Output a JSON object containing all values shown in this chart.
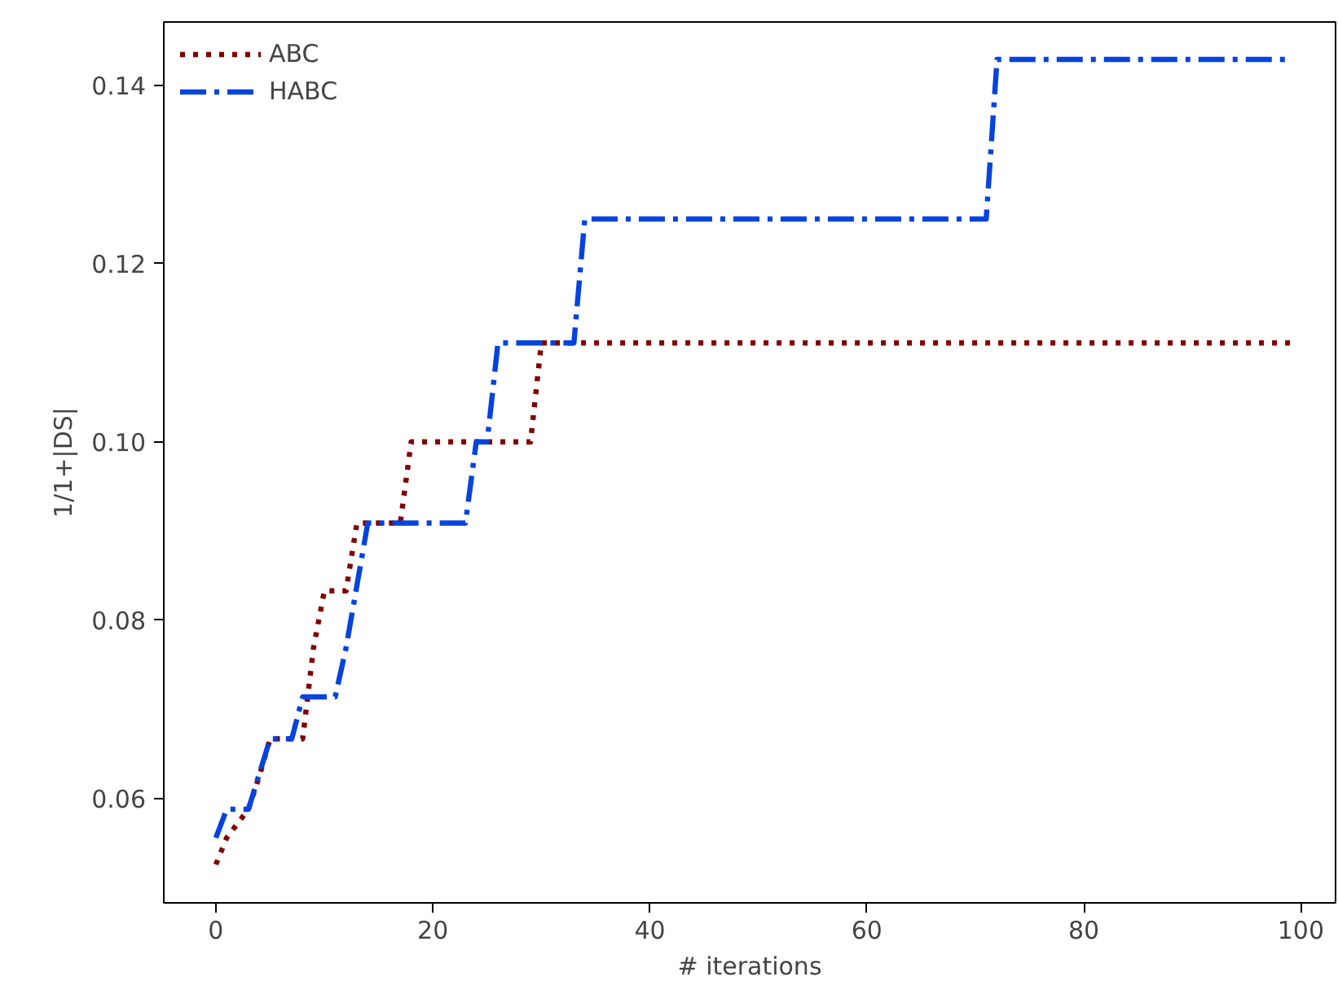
{
  "chart_data": {
    "type": "line",
    "xlabel": "# iterations",
    "ylabel": "1/1+|DS|",
    "xlim": [
      -4.8,
      103.2
    ],
    "ylim": [
      0.0483,
      0.1471
    ],
    "xticks": [
      0,
      20,
      40,
      60,
      80,
      100
    ],
    "yticks": [
      {
        "value": 0.06,
        "label": "0.06"
      },
      {
        "value": 0.08,
        "label": "0.08"
      },
      {
        "value": 0.1,
        "label": "0.10"
      },
      {
        "value": 0.12,
        "label": "0.12"
      },
      {
        "value": 0.14,
        "label": "0.14"
      }
    ],
    "grid": false,
    "legend": "top left",
    "series": [
      {
        "name": "ABC",
        "color": "#800000",
        "line_style": "dotted",
        "x": [
          0,
          1,
          3,
          4,
          5,
          7,
          8,
          9,
          10,
          12,
          13,
          17,
          18,
          29,
          30,
          99
        ],
        "values": [
          0.0526,
          0.0556,
          0.0588,
          0.0625,
          0.0667,
          0.0667,
          0.0667,
          0.0769,
          0.0833,
          0.0833,
          0.0909,
          0.0909,
          0.1,
          0.1,
          0.1111,
          0.1111
        ]
      },
      {
        "name": "HABC",
        "color": "#0343df",
        "line_style": "dashdot",
        "x": [
          0,
          1,
          3,
          5,
          7,
          8,
          11,
          12,
          14,
          23,
          24,
          25,
          26,
          33,
          34,
          71,
          72,
          99
        ],
        "values": [
          0.0556,
          0.0588,
          0.0588,
          0.0667,
          0.0667,
          0.0714,
          0.0714,
          0.0769,
          0.0909,
          0.0909,
          0.1,
          0.1,
          0.1111,
          0.1111,
          0.125,
          0.125,
          0.1429,
          0.1429
        ]
      }
    ]
  }
}
